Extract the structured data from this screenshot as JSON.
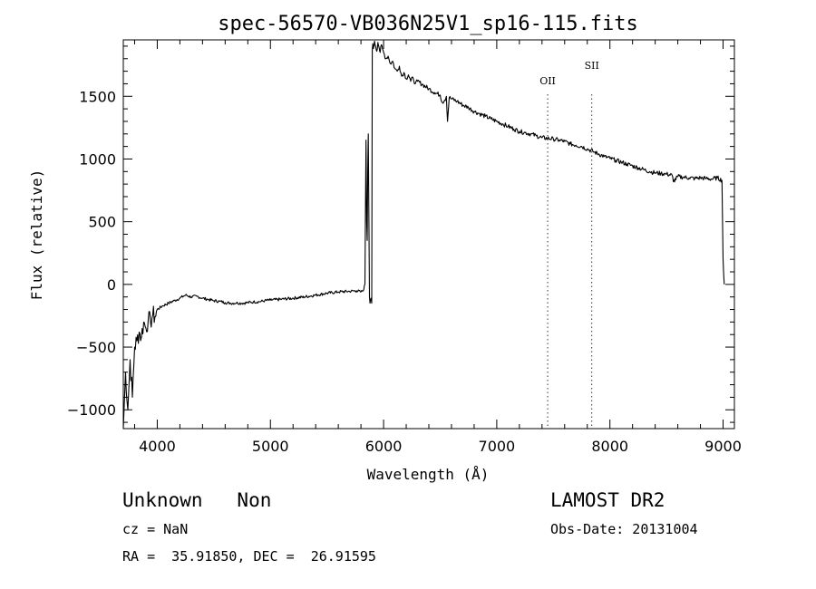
{
  "chart_data": {
    "type": "line",
    "title": "spec-56570-VB036N25V1_sp16-115.fits",
    "xlabel": "Wavelength (Å)",
    "ylabel": "Flux (relative)",
    "xlim": [
      3700,
      9100
    ],
    "ylim": [
      -1150,
      1950
    ],
    "x_ticks": [
      4000,
      5000,
      6000,
      7000,
      8000,
      9000
    ],
    "y_ticks": [
      -1000,
      -500,
      0,
      500,
      1000,
      1500
    ],
    "grid": false,
    "line_color": "#000000",
    "series": [
      {
        "x": [
          3700,
          3720,
          3740,
          3760,
          3780,
          3800,
          3820,
          3840,
          3860,
          3880,
          3900,
          3920,
          3940,
          3960,
          3980,
          4000,
          4050,
          4100,
          4150,
          4200,
          4250,
          4300,
          4350,
          4400,
          4450,
          4500,
          4550,
          4600,
          4650,
          4700,
          4750,
          4800,
          4850,
          4900,
          4950,
          5000,
          5100,
          5200,
          5300,
          5400,
          5500,
          5600,
          5700,
          5760,
          5800,
          5820,
          5835,
          5840,
          5845,
          5850,
          5855,
          5860,
          5865,
          5870,
          5875,
          5880,
          5885,
          5890,
          5895,
          5900,
          5905,
          5910,
          5920,
          5930,
          5940,
          5950,
          5960,
          5970,
          5980,
          5990,
          6000,
          6020,
          6040,
          6060,
          6080,
          6100,
          6120,
          6140,
          6160,
          6180,
          6200,
          6220,
          6240,
          6260,
          6280,
          6300,
          6350,
          6400,
          6450,
          6500,
          6520,
          6540,
          6555,
          6565,
          6580,
          6600,
          6650,
          6700,
          6750,
          6800,
          6850,
          6900,
          6950,
          7000,
          7050,
          7100,
          7150,
          7200,
          7250,
          7300,
          7350,
          7400,
          7450,
          7500,
          7550,
          7600,
          7650,
          7700,
          7750,
          7800,
          7850,
          7900,
          7950,
          8000,
          8050,
          8100,
          8150,
          8200,
          8250,
          8300,
          8350,
          8400,
          8450,
          8500,
          8550,
          8560,
          8600,
          8650,
          8700,
          8750,
          8800,
          8850,
          8900,
          8950,
          8990,
          9000,
          9010
        ],
        "y": [
          -1150,
          -700,
          -1000,
          -600,
          -900,
          -500,
          -450,
          -380,
          -420,
          -300,
          -350,
          -280,
          -300,
          -240,
          -260,
          -200,
          -170,
          -150,
          -130,
          -110,
          -85,
          -100,
          -95,
          -110,
          -120,
          -130,
          -135,
          -145,
          -150,
          -148,
          -150,
          -145,
          -140,
          -138,
          -130,
          -125,
          -118,
          -110,
          -100,
          -85,
          -70,
          -60,
          -55,
          -50,
          -60,
          -50,
          0,
          600,
          1150,
          500,
          350,
          900,
          1200,
          600,
          -100,
          -150,
          -120,
          -110,
          -150,
          1870,
          1920,
          1880,
          1940,
          1900,
          1860,
          1930,
          1890,
          1850,
          1910,
          1880,
          1850,
          1800,
          1820,
          1760,
          1780,
          1720,
          1700,
          1740,
          1660,
          1690,
          1640,
          1670,
          1620,
          1650,
          1600,
          1620,
          1590,
          1560,
          1530,
          1510,
          1450,
          1470,
          1500,
          1300,
          1490,
          1480,
          1460,
          1430,
          1410,
          1380,
          1360,
          1340,
          1320,
          1300,
          1280,
          1260,
          1240,
          1220,
          1210,
          1200,
          1185,
          1170,
          1165,
          1160,
          1150,
          1140,
          1120,
          1110,
          1100,
          1080,
          1060,
          1040,
          1020,
          1005,
          990,
          975,
          960,
          945,
          930,
          915,
          900,
          890,
          885,
          880,
          870,
          820,
          860,
          855,
          850,
          845,
          850,
          845,
          840,
          850,
          830,
          200,
          0
        ]
      }
    ],
    "reference_lines": [
      {
        "label": "OII",
        "x": 7450
      },
      {
        "label": "SII",
        "x": 7840
      }
    ]
  },
  "info": {
    "class_text": "Unknown   Non",
    "survey": "LAMOST DR2",
    "cz": "cz = NaN",
    "obs_date": "Obs-Date: 20131004",
    "radec": "RA =  35.91850, DEC =  26.91595"
  }
}
